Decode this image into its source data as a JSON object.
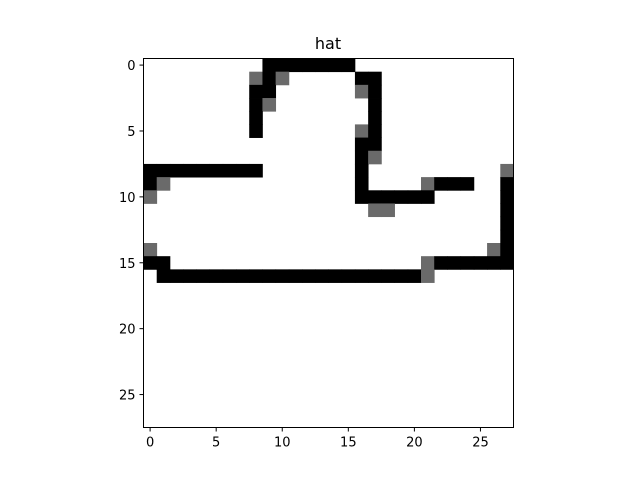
{
  "figure": {
    "title": "hat"
  },
  "image": {
    "rows": 28,
    "cols": 28,
    "colormap": {
      "0": "#ffffff",
      "1": "#6a6a6a",
      "2": "#000000"
    },
    "pixels": [
      "0000000002222222000000000000",
      "0000000012100000220000000000",
      "0000000022000000120000000000",
      "0000000021000000020000000000",
      "0000000020000000020000000000",
      "0000000020000000120000000000",
      "0000000000000000220000000000",
      "0000000000000000210000000000",
      "2222222220000000200000000001",
      "2100000000000000200001222002",
      "1000000000000000222222000002",
      "0000000000000000011000000002",
      "0000000000000000000000000002",
      "0000000000000000000000000002",
      "1000000000000000000000000012",
      "2200000000000000000001222222",
      "0222222222222222222221000000",
      "0000000000000000000000000000",
      "0000000000000000000000000000",
      "0000000000000000000000000000",
      "0000000000000000000000000000",
      "0000000000000000000000000000",
      "0000000000000000000000000000",
      "0000000000000000000000000000",
      "0000000000000000000000000000",
      "0000000000000000000000000000",
      "0000000000000000000000000000",
      "0000000000000000000000000000"
    ]
  },
  "axes": {
    "x_ticks": [
      0,
      5,
      10,
      15,
      20,
      25
    ],
    "y_ticks": [
      0,
      5,
      10,
      15,
      20,
      25
    ]
  }
}
